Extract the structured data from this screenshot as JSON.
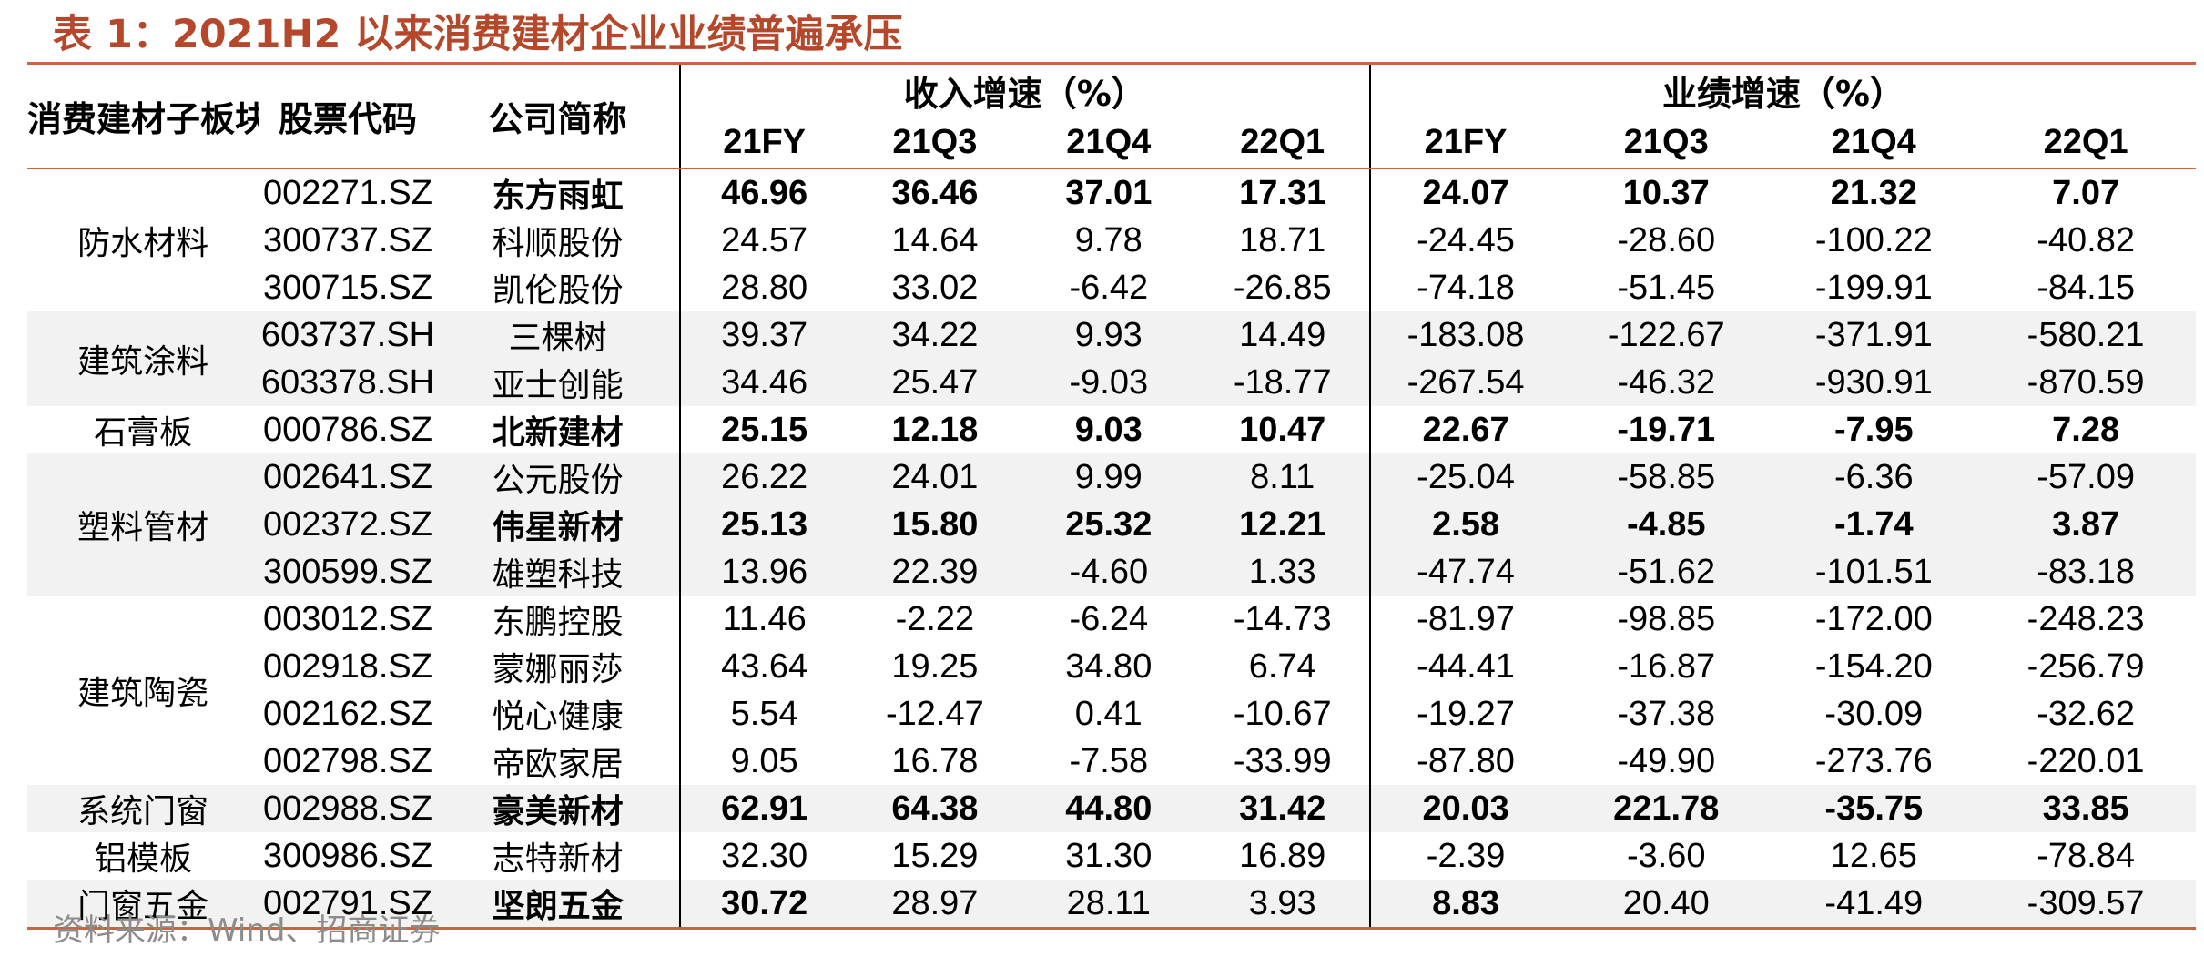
{
  "title": "表 1：2021H2 以来消费建材企业业绩普遍承压",
  "headers": {
    "segment": "消费建材子板块",
    "code": "股票代码",
    "company": "公司简称",
    "revenue_group": "收入增速（%）",
    "profit_group": "业绩增速（%）",
    "periods": [
      "21FY",
      "21Q3",
      "21Q4",
      "22Q1"
    ]
  },
  "groups": [
    {
      "segment": "防水材料",
      "rows": [
        {
          "code": "002271.SZ",
          "name": "东方雨虹",
          "bold": true,
          "rev": [
            "46.96",
            "36.46",
            "37.01",
            "17.31"
          ],
          "profit": [
            "24.07",
            "10.37",
            "21.32",
            "7.07"
          ]
        },
        {
          "code": "300737.SZ",
          "name": "科顺股份",
          "bold": false,
          "rev": [
            "24.57",
            "14.64",
            "9.78",
            "18.71"
          ],
          "profit": [
            "-24.45",
            "-28.60",
            "-100.22",
            "-40.82"
          ]
        },
        {
          "code": "300715.SZ",
          "name": "凯伦股份",
          "bold": false,
          "rev": [
            "28.80",
            "33.02",
            "-6.42",
            "-26.85"
          ],
          "profit": [
            "-74.18",
            "-51.45",
            "-199.91",
            "-84.15"
          ]
        }
      ]
    },
    {
      "segment": "建筑涂料",
      "rows": [
        {
          "code": "603737.SH",
          "name": "三棵树",
          "bold": false,
          "rev": [
            "39.37",
            "34.22",
            "9.93",
            "14.49"
          ],
          "profit": [
            "-183.08",
            "-122.67",
            "-371.91",
            "-580.21"
          ]
        },
        {
          "code": "603378.SH",
          "name": "亚士创能",
          "bold": false,
          "rev": [
            "34.46",
            "25.47",
            "-9.03",
            "-18.77"
          ],
          "profit": [
            "-267.54",
            "-46.32",
            "-930.91",
            "-870.59"
          ]
        }
      ]
    },
    {
      "segment": "石膏板",
      "rows": [
        {
          "code": "000786.SZ",
          "name": "北新建材",
          "bold": true,
          "rev": [
            "25.15",
            "12.18",
            "9.03",
            "10.47"
          ],
          "profit": [
            "22.67",
            "-19.71",
            "-7.95",
            "7.28"
          ]
        }
      ]
    },
    {
      "segment": "塑料管材",
      "rows": [
        {
          "code": "002641.SZ",
          "name": "公元股份",
          "bold": false,
          "rev": [
            "26.22",
            "24.01",
            "9.99",
            "8.11"
          ],
          "profit": [
            "-25.04",
            "-58.85",
            "-6.36",
            "-57.09"
          ]
        },
        {
          "code": "002372.SZ",
          "name": "伟星新材",
          "bold": true,
          "rev": [
            "25.13",
            "15.80",
            "25.32",
            "12.21"
          ],
          "profit": [
            "2.58",
            "-4.85",
            "-1.74",
            "3.87"
          ]
        },
        {
          "code": "300599.SZ",
          "name": "雄塑科技",
          "bold": false,
          "rev": [
            "13.96",
            "22.39",
            "-4.60",
            "1.33"
          ],
          "profit": [
            "-47.74",
            "-51.62",
            "-101.51",
            "-83.18"
          ]
        }
      ]
    },
    {
      "segment": "建筑陶瓷",
      "rows": [
        {
          "code": "003012.SZ",
          "name": "东鹏控股",
          "bold": false,
          "rev": [
            "11.46",
            "-2.22",
            "-6.24",
            "-14.73"
          ],
          "profit": [
            "-81.97",
            "-98.85",
            "-172.00",
            "-248.23"
          ]
        },
        {
          "code": "002918.SZ",
          "name": "蒙娜丽莎",
          "bold": false,
          "rev": [
            "43.64",
            "19.25",
            "34.80",
            "6.74"
          ],
          "profit": [
            "-44.41",
            "-16.87",
            "-154.20",
            "-256.79"
          ]
        },
        {
          "code": "002162.SZ",
          "name": "悦心健康",
          "bold": false,
          "rev": [
            "5.54",
            "-12.47",
            "0.41",
            "-10.67"
          ],
          "profit": [
            "-19.27",
            "-37.38",
            "-30.09",
            "-32.62"
          ]
        },
        {
          "code": "002798.SZ",
          "name": "帝欧家居",
          "bold": false,
          "rev": [
            "9.05",
            "16.78",
            "-7.58",
            "-33.99"
          ],
          "profit": [
            "-87.80",
            "-49.90",
            "-273.76",
            "-220.01"
          ]
        }
      ]
    },
    {
      "segment": "系统门窗",
      "rows": [
        {
          "code": "002988.SZ",
          "name": "豪美新材",
          "bold": true,
          "rev": [
            "62.91",
            "64.38",
            "44.80",
            "31.42"
          ],
          "profit": [
            "20.03",
            "221.78",
            "-35.75",
            "33.85"
          ]
        }
      ]
    },
    {
      "segment": "铝模板",
      "rows": [
        {
          "code": "300986.SZ",
          "name": "志特新材",
          "bold": false,
          "rev": [
            "32.30",
            "15.29",
            "31.30",
            "16.89"
          ],
          "profit": [
            "-2.39",
            "-3.60",
            "12.65",
            "-78.84"
          ]
        }
      ]
    },
    {
      "segment": "门窗五金",
      "rows": [
        {
          "code": "002791.SZ",
          "name": "坚朗五金",
          "bold": true,
          "boldRev": [
            true,
            false,
            false,
            false
          ],
          "boldProfit": [
            true,
            false,
            false,
            false
          ],
          "rev": [
            "30.72",
            "28.97",
            "28.11",
            "3.93"
          ],
          "profit": [
            "8.83",
            "20.40",
            "-41.49",
            "-309.57"
          ]
        }
      ]
    }
  ],
  "source": "资料来源：Wind、招商证券"
}
